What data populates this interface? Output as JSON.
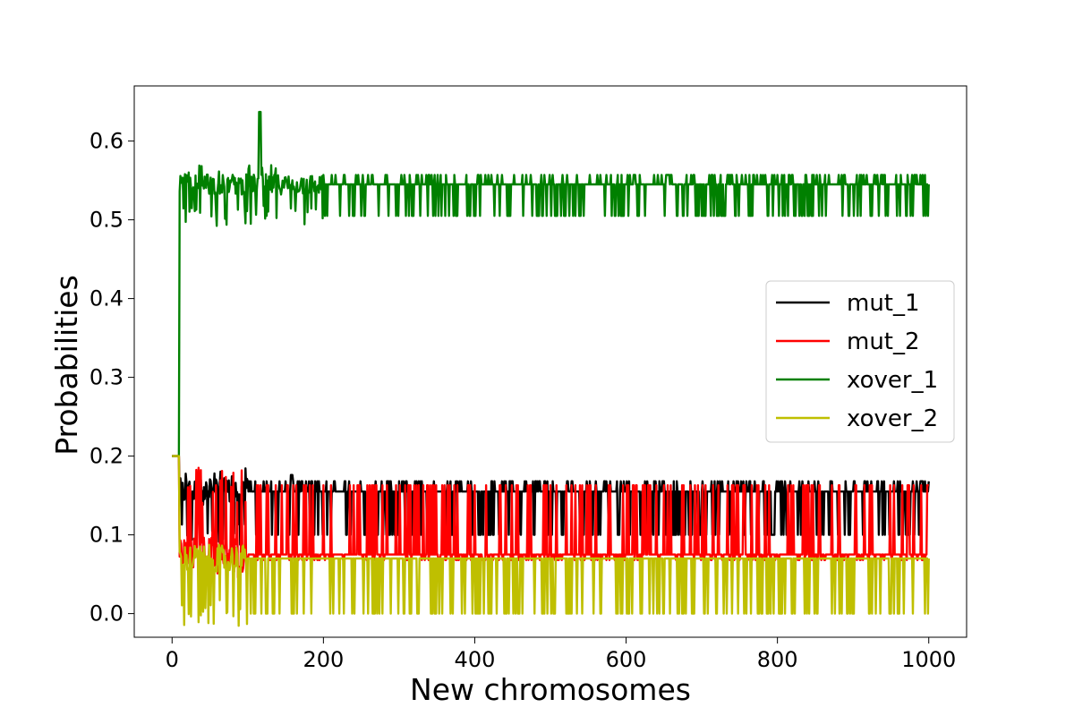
{
  "chart_data": {
    "type": "line",
    "title": "",
    "xlabel": "New chromosomes",
    "ylabel": "Probabilities",
    "xlim": [
      -50,
      1050
    ],
    "ylim": [
      -0.03,
      0.67
    ],
    "xticks": [
      0,
      200,
      400,
      600,
      800,
      1000
    ],
    "xtick_labels": [
      "0",
      "200",
      "400",
      "600",
      "800",
      "1000"
    ],
    "yticks": [
      0.0,
      0.1,
      0.2,
      0.3,
      0.4,
      0.5,
      0.6
    ],
    "ytick_labels": [
      "0.0",
      "0.1",
      "0.2",
      "0.3",
      "0.4",
      "0.5",
      "0.6"
    ],
    "grid": false,
    "legend_position": "center-right",
    "x_range": [
      0,
      1000
    ],
    "initial_value": 0.2,
    "transition_x": 10,
    "series": [
      {
        "name": "mut_1",
        "color": "#000000",
        "base": 0.155,
        "alt_high": 0.168,
        "alt_low": 0.1,
        "noise_end": 100,
        "spike_x": 158,
        "spike_value": 0.176
      },
      {
        "name": "mut_2",
        "color": "#ff0000",
        "base": 0.075,
        "alt_high": 0.163,
        "alt_low": 0.068,
        "noise_end": 100,
        "spike_x": 0,
        "spike_value": 0
      },
      {
        "name": "xover_1",
        "color": "#008000",
        "base": 0.545,
        "alt_high": 0.557,
        "alt_low": 0.505,
        "noise_end": 200,
        "spike_x": 116,
        "spike_value": 0.637
      },
      {
        "name": "xover_2",
        "color": "#bfbf00",
        "base": 0.07,
        "alt_high": 0.07,
        "alt_low": 0.0,
        "noise_end": 100,
        "spike_x": 0,
        "spike_value": 0
      }
    ]
  }
}
